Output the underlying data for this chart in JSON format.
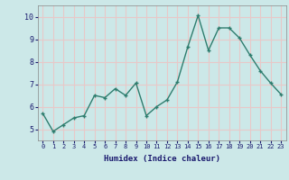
{
  "x": [
    0,
    1,
    2,
    3,
    4,
    5,
    6,
    7,
    8,
    9,
    10,
    11,
    12,
    13,
    14,
    15,
    16,
    17,
    18,
    19,
    20,
    21,
    22,
    23
  ],
  "y": [
    5.7,
    4.9,
    5.2,
    5.5,
    5.6,
    6.5,
    6.4,
    6.8,
    6.5,
    7.05,
    5.6,
    6.0,
    6.3,
    7.1,
    8.65,
    10.05,
    8.5,
    9.5,
    9.5,
    9.05,
    8.3,
    7.6,
    7.05,
    6.55
  ],
  "title": "",
  "xlabel": "Humidex (Indice chaleur)",
  "ylabel": "",
  "xlim": [
    -0.5,
    23.5
  ],
  "ylim": [
    4.5,
    10.5
  ],
  "yticks": [
    5,
    6,
    7,
    8,
    9,
    10
  ],
  "xticks": [
    0,
    1,
    2,
    3,
    4,
    5,
    6,
    7,
    8,
    9,
    10,
    11,
    12,
    13,
    14,
    15,
    16,
    17,
    18,
    19,
    20,
    21,
    22,
    23
  ],
  "line_color": "#2e7d6e",
  "marker_color": "#2e7d6e",
  "grid_color": "#e8c8c8",
  "axes_bg": "#cce8e8",
  "fig_bg": "#cce8e8",
  "xlabel_color": "#1a1a6e",
  "tick_color": "#1a1a6e"
}
